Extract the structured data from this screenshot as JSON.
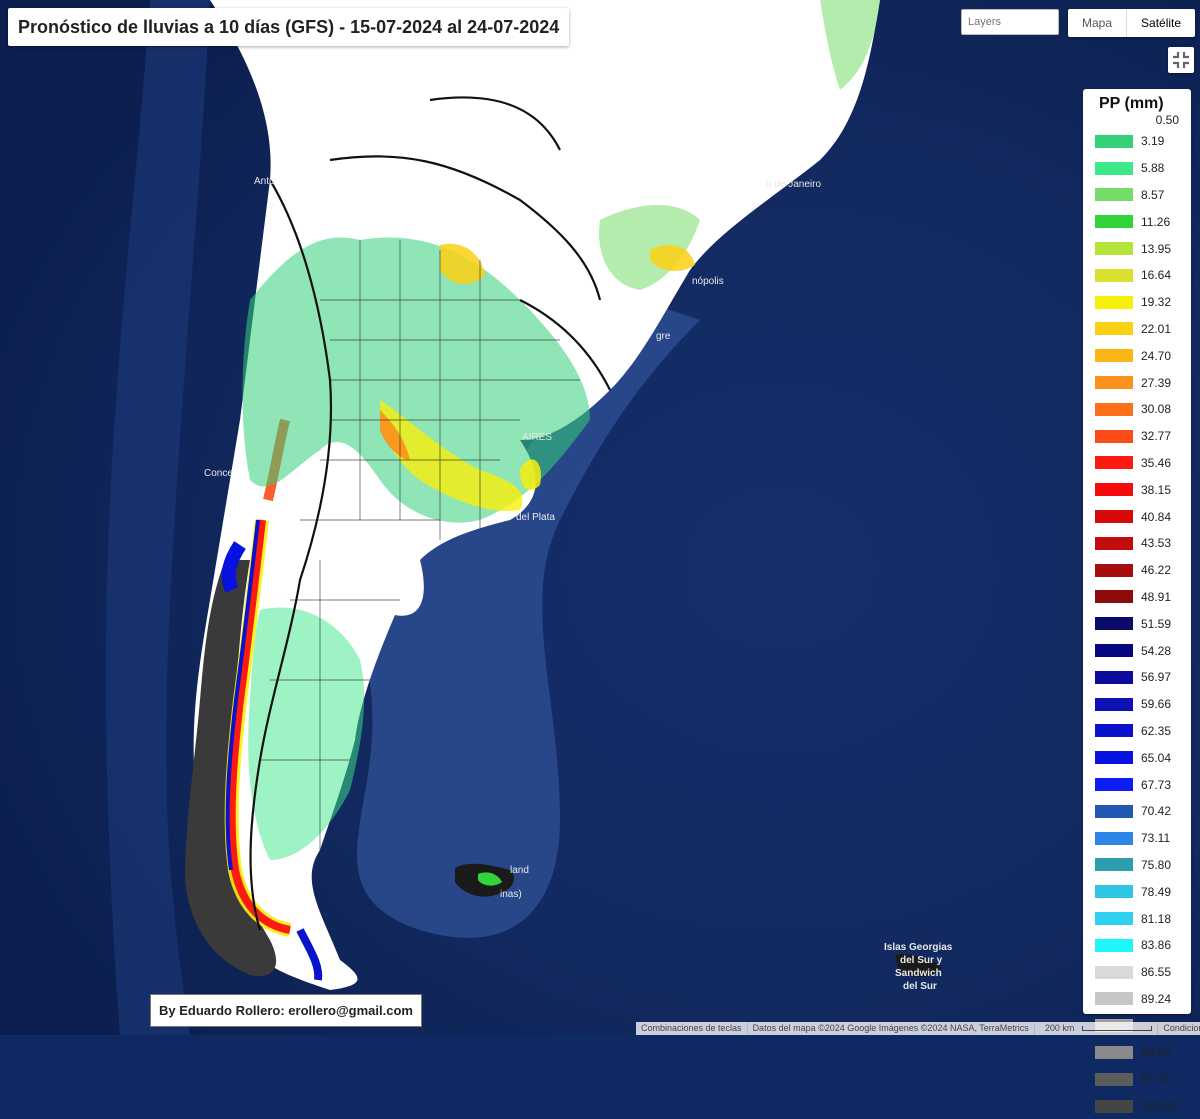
{
  "title": "Pronóstico de lluvias a 10 días (GFS) - 15-07-2024 al 24-07-2024",
  "controls": {
    "layers_placeholder": "Layers",
    "map_type_options": [
      "Mapa",
      "Satélite"
    ],
    "map_type_selected": "Satélite",
    "fullscreen_icon": "fullscreen-exit-icon"
  },
  "legend": {
    "title": "PP (mm)",
    "top_label": "0.50",
    "entries": [
      {
        "label": "3.19",
        "color": "#35d07a"
      },
      {
        "label": "5.88",
        "color": "#3ce887"
      },
      {
        "label": "8.57",
        "color": "#74dd6a"
      },
      {
        "label": "11.26",
        "color": "#33d33b"
      },
      {
        "label": "13.95",
        "color": "#b4e33a"
      },
      {
        "label": "16.64",
        "color": "#d9e02f"
      },
      {
        "label": "19.32",
        "color": "#f7ef0c"
      },
      {
        "label": "22.01",
        "color": "#fcd113"
      },
      {
        "label": "24.70",
        "color": "#fbb514"
      },
      {
        "label": "27.39",
        "color": "#fb901c"
      },
      {
        "label": "30.08",
        "color": "#fc6e17"
      },
      {
        "label": "32.77",
        "color": "#fb4b17"
      },
      {
        "label": "35.46",
        "color": "#fb1b10"
      },
      {
        "label": "38.15",
        "color": "#f60b0b"
      },
      {
        "label": "40.84",
        "color": "#d60a0a"
      },
      {
        "label": "43.53",
        "color": "#c10d0d"
      },
      {
        "label": "46.22",
        "color": "#a70d0d"
      },
      {
        "label": "48.91",
        "color": "#8c0b0b"
      },
      {
        "label": "51.59",
        "color": "#0a0a6b"
      },
      {
        "label": "54.28",
        "color": "#06067f"
      },
      {
        "label": "56.97",
        "color": "#0b0b9c"
      },
      {
        "label": "59.66",
        "color": "#0e12b5"
      },
      {
        "label": "62.35",
        "color": "#0b12cc"
      },
      {
        "label": "65.04",
        "color": "#0711e0"
      },
      {
        "label": "67.73",
        "color": "#0d1df3"
      },
      {
        "label": "70.42",
        "color": "#2258b4"
      },
      {
        "label": "73.11",
        "color": "#2f84e8"
      },
      {
        "label": "75.80",
        "color": "#2b9fb0"
      },
      {
        "label": "78.49",
        "color": "#2ec4e3"
      },
      {
        "label": "81.18",
        "color": "#2ed1ee"
      },
      {
        "label": "83.86",
        "color": "#1ff6fc"
      },
      {
        "label": "86.55",
        "color": "#d9d9d9"
      },
      {
        "label": "89.24",
        "color": "#c6c6c6"
      },
      {
        "label": "91.93",
        "color": "#9e9e9e"
      },
      {
        "label": "94.62",
        "color": "#8a8a8a"
      },
      {
        "label": "97.31",
        "color": "#5c5c5c"
      },
      {
        "label": "100.00",
        "color": "#454545"
      }
    ]
  },
  "credit": "By Eduardo Rollero: erollero@gmail.com",
  "footer": {
    "shortcuts": "Combinaciones de teclas",
    "map_data": "Datos del mapa ©2024 Google Imágenes ©2024 NASA, TerraMetrics",
    "scale": "200 km",
    "terms": "Condiciones"
  },
  "map_labels": [
    {
      "name": "Antofagasta",
      "text": "Anto"
    },
    {
      "name": "Concepcion",
      "text": "Conce"
    },
    {
      "name": "Rio de Janeiro",
      "text": "o de Janeiro"
    },
    {
      "name": "Florianopolis",
      "text": "nópolis"
    },
    {
      "name": "Porto Alegre",
      "text": "gre"
    },
    {
      "name": "Buenos Aires",
      "text": "AIRES"
    },
    {
      "name": "Rio de la Plata",
      "text": "del Plata"
    },
    {
      "name": "Islas Malvinas",
      "text": "land"
    },
    {
      "name": "Islas Malvinas 2",
      "text": "inas)"
    },
    {
      "name": "Islas Georgias del Sur",
      "text": "Islas Georgias"
    },
    {
      "name": "Islas Georgias line 2",
      "text": "del Sur y"
    },
    {
      "name": "Islas Georgias line 3",
      "text": "Sandwich"
    },
    {
      "name": "Islas Georgias line 4",
      "text": "del Sur"
    }
  ],
  "colors": {
    "ocean_deep": "#0f2a63",
    "ocean_shelf": "#3a5fa6",
    "land_dry": "#ffffff"
  }
}
